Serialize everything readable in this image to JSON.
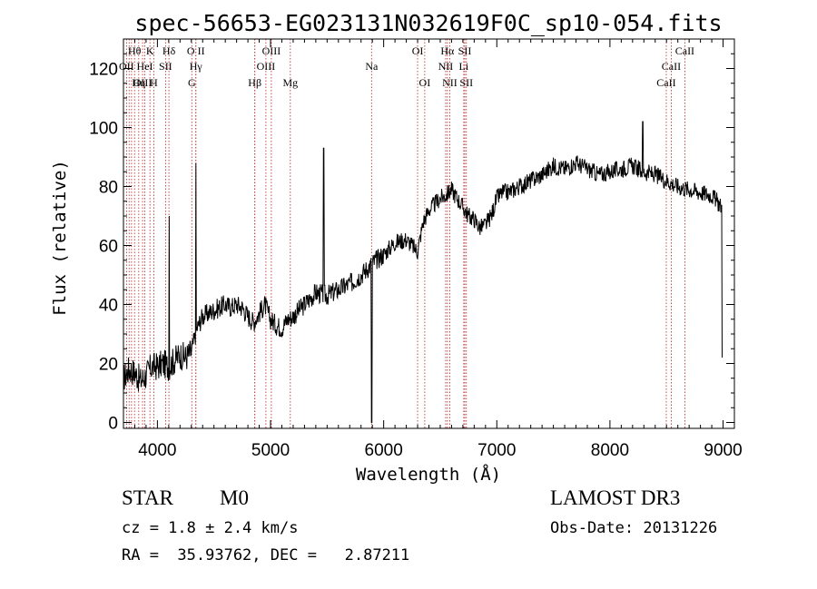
{
  "chart_data": {
    "type": "line",
    "title": "spec-56653-EG023131N032619F0C_sp10-054.fits",
    "xlabel": "Wavelength (Å)",
    "ylabel": "Flux (relative)",
    "xlim": [
      3700,
      9100
    ],
    "ylim": [
      -2,
      130
    ],
    "xticks": [
      4000,
      5000,
      6000,
      7000,
      8000,
      9000
    ],
    "yticks": [
      0,
      20,
      40,
      60,
      80,
      100,
      120
    ],
    "line_color": "#000000",
    "marker_color": "#b22222",
    "spectrum_anchors": [
      [
        3700,
        15
      ],
      [
        3750,
        18
      ],
      [
        3800,
        17
      ],
      [
        3850,
        14
      ],
      [
        3900,
        16
      ],
      [
        3950,
        19
      ],
      [
        4000,
        19
      ],
      [
        4050,
        20
      ],
      [
        4100,
        19
      ],
      [
        4150,
        21
      ],
      [
        4200,
        23
      ],
      [
        4250,
        22
      ],
      [
        4300,
        24
      ],
      [
        4350,
        32
      ],
      [
        4400,
        36
      ],
      [
        4450,
        37
      ],
      [
        4500,
        38
      ],
      [
        4550,
        39
      ],
      [
        4600,
        40
      ],
      [
        4650,
        39
      ],
      [
        4700,
        40
      ],
      [
        4750,
        39
      ],
      [
        4800,
        36
      ],
      [
        4850,
        34
      ],
      [
        4900,
        37
      ],
      [
        4950,
        40
      ],
      [
        5000,
        35
      ],
      [
        5050,
        33
      ],
      [
        5100,
        32
      ],
      [
        5150,
        35
      ],
      [
        5200,
        36
      ],
      [
        5300,
        40
      ],
      [
        5400,
        44
      ],
      [
        5500,
        43
      ],
      [
        5600,
        45
      ],
      [
        5700,
        47
      ],
      [
        5800,
        50
      ],
      [
        5900,
        54
      ],
      [
        6000,
        57
      ],
      [
        6100,
        61
      ],
      [
        6200,
        62
      ],
      [
        6250,
        60
      ],
      [
        6300,
        58
      ],
      [
        6350,
        68
      ],
      [
        6400,
        72
      ],
      [
        6450,
        74
      ],
      [
        6500,
        76
      ],
      [
        6550,
        77
      ],
      [
        6600,
        79
      ],
      [
        6650,
        76
      ],
      [
        6700,
        73
      ],
      [
        6750,
        70
      ],
      [
        6800,
        69
      ],
      [
        6850,
        66
      ],
      [
        6900,
        67
      ],
      [
        6950,
        70
      ],
      [
        7000,
        76
      ],
      [
        7050,
        78
      ],
      [
        7100,
        78
      ],
      [
        7200,
        80
      ],
      [
        7300,
        82
      ],
      [
        7400,
        84
      ],
      [
        7500,
        87
      ],
      [
        7600,
        86
      ],
      [
        7700,
        88
      ],
      [
        7800,
        86
      ],
      [
        7900,
        84
      ],
      [
        8000,
        85
      ],
      [
        8100,
        86
      ],
      [
        8200,
        87
      ],
      [
        8300,
        85
      ],
      [
        8400,
        84
      ],
      [
        8500,
        82
      ],
      [
        8600,
        80
      ],
      [
        8700,
        79
      ],
      [
        8800,
        78
      ],
      [
        8900,
        77
      ],
      [
        8990,
        73
      ]
    ],
    "spectrum_features": [
      [
        4104,
        70
      ],
      [
        4340,
        88
      ],
      [
        5470,
        93
      ],
      [
        5893,
        0
      ],
      [
        8290,
        102
      ],
      [
        8995,
        22
      ]
    ],
    "lines": [
      {
        "label": "Hθ",
        "wave": 3798,
        "row": 0
      },
      {
        "label": "K",
        "wave": 3934,
        "row": 0
      },
      {
        "label": "Hδ",
        "wave": 4102,
        "row": 0
      },
      {
        "label": "O II",
        "wave": 4340,
        "row": 0
      },
      {
        "label": "OIII",
        "wave": 5007,
        "row": 0
      },
      {
        "label": "OI",
        "wave": 6300,
        "row": 0
      },
      {
        "label": "Hα",
        "wave": 6563,
        "row": 0
      },
      {
        "label": "SII",
        "wave": 6717,
        "row": 0
      },
      {
        "label": "CaII",
        "wave": 8662,
        "row": 0
      },
      {
        "label": "OII",
        "wave": 3727,
        "row": 1
      },
      {
        "label": "HeI",
        "wave": 3889,
        "row": 1
      },
      {
        "label": "SII",
        "wave": 4072,
        "row": 1
      },
      {
        "label": "Hγ",
        "wave": 4340,
        "row": 1
      },
      {
        "label": "OIII",
        "wave": 4959,
        "row": 1
      },
      {
        "label": "Na",
        "wave": 5893,
        "row": 1
      },
      {
        "label": "NII",
        "wave": 6548,
        "row": 1
      },
      {
        "label": "Li",
        "wave": 6708,
        "row": 1
      },
      {
        "label": "CaII",
        "wave": 8542,
        "row": 1
      },
      {
        "label": "OIII",
        "wave": 3869,
        "row": 2
      },
      {
        "label": "Hη",
        "wave": 3835,
        "row": 2
      },
      {
        "label": "H",
        "wave": 3968,
        "row": 2
      },
      {
        "label": "G",
        "wave": 4304,
        "row": 2
      },
      {
        "label": "Hβ",
        "wave": 4861,
        "row": 2
      },
      {
        "label": "Mg",
        "wave": 5175,
        "row": 2
      },
      {
        "label": "OI",
        "wave": 6363,
        "row": 2
      },
      {
        "label": "NII",
        "wave": 6584,
        "row": 2
      },
      {
        "label": "SII",
        "wave": 6731,
        "row": 2
      },
      {
        "label": "CaII",
        "wave": 8498,
        "row": 2
      }
    ],
    "extra_marker_waves": [
      3750,
      3771,
      4861
    ]
  },
  "info": {
    "object_class": "STAR",
    "subclass": "M0",
    "survey": "LAMOST DR3",
    "cz": "cz = 1.8 ± 2.4 km/s",
    "obs_date": "Obs-Date: 20131226",
    "coords": "RA =  35.93762, DEC =   2.87211"
  }
}
